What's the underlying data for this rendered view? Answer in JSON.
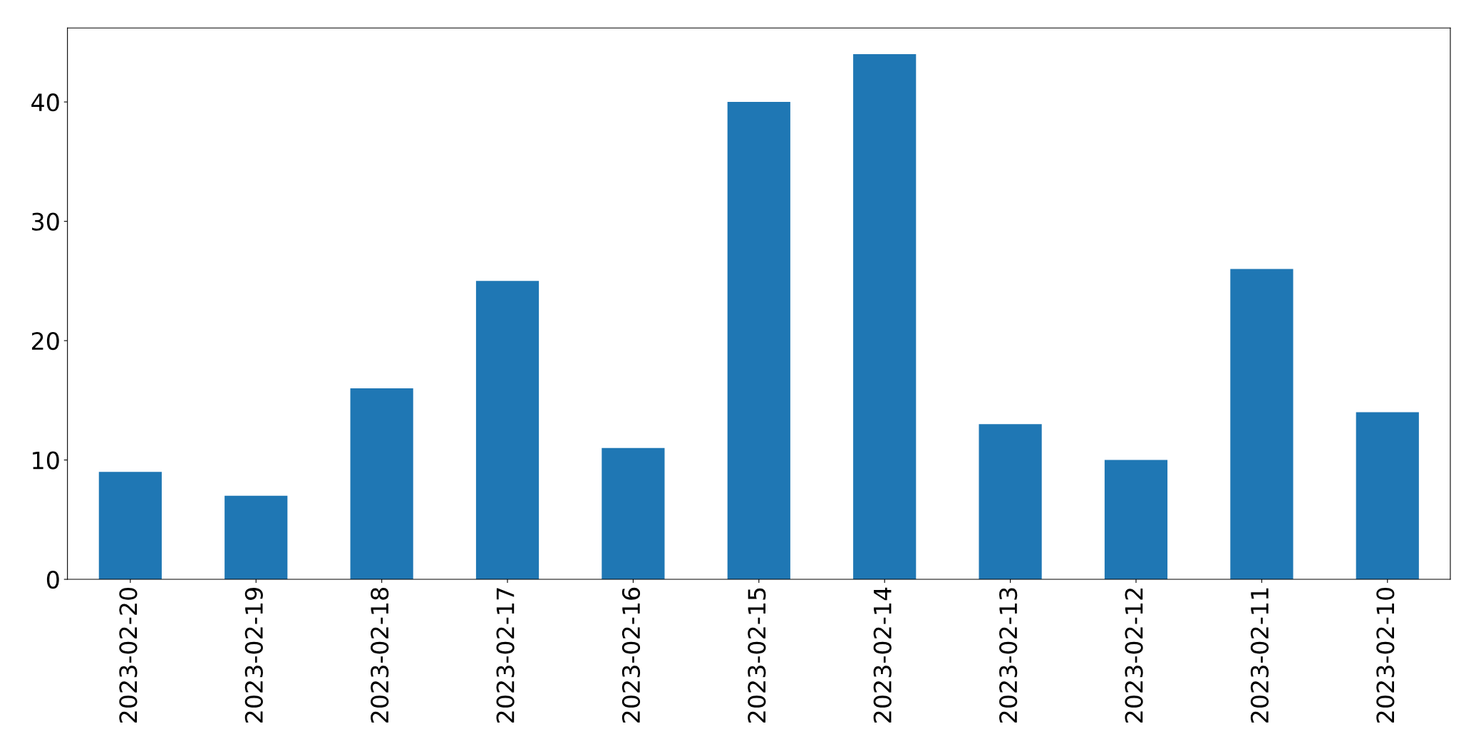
{
  "chart_data": {
    "type": "bar",
    "categories": [
      "2023-02-20",
      "2023-02-19",
      "2023-02-18",
      "2023-02-17",
      "2023-02-16",
      "2023-02-15",
      "2023-02-14",
      "2023-02-13",
      "2023-02-12",
      "2023-02-11",
      "2023-02-10"
    ],
    "values": [
      9,
      7,
      16,
      25,
      11,
      40,
      44,
      13,
      10,
      26,
      14
    ],
    "color": "#1f77b4",
    "ylim": [
      0,
      46.2
    ],
    "yticks": [
      0,
      10,
      20,
      30,
      40
    ],
    "grid": false,
    "legend": false
  }
}
